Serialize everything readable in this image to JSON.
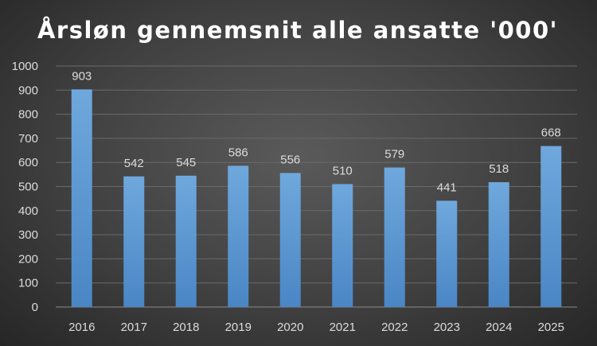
{
  "chart_data": {
    "type": "bar",
    "title": "Årsløn gennemsnit alle ansatte '000'",
    "categories": [
      "2016",
      "2017",
      "2018",
      "2019",
      "2020",
      "2021",
      "2022",
      "2023",
      "2024",
      "2025"
    ],
    "values": [
      903,
      542,
      545,
      586,
      556,
      510,
      579,
      441,
      518,
      668
    ],
    "ylim": [
      0,
      1000
    ],
    "yticks": [
      "0",
      "100",
      "200",
      "300",
      "400",
      "500",
      "600",
      "700",
      "800",
      "900",
      "1000"
    ],
    "grid": true,
    "legend": "none",
    "bar_color_top": "#6fa8dc",
    "bar_color_bottom": "#4a86c5",
    "background_color": "#404040"
  }
}
